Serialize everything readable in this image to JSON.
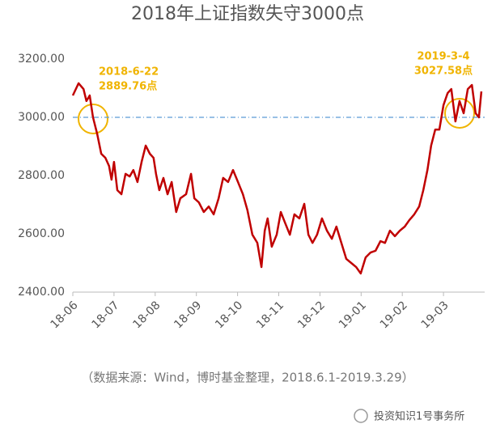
{
  "chart_data": {
    "type": "line",
    "title": "2018年上证指数失守3000点",
    "source": "（数据来源：Wind，博时基金整理，2018.6.1-2019.3.29）",
    "watermark": "投资知识1号事务所",
    "annotations": [
      {
        "date": "2018-6-22",
        "value_label": "2889.76点"
      },
      {
        "date": "2019-3-4",
        "value_label": "3027.58点"
      }
    ],
    "reference_line": 3000,
    "xlim": [
      0,
      10
    ],
    "xticks": [
      {
        "value": 0,
        "label": "18-06"
      },
      {
        "value": 1,
        "label": "18-07"
      },
      {
        "value": 2,
        "label": "18-08"
      },
      {
        "value": 3,
        "label": "18-09"
      },
      {
        "value": 4,
        "label": "18-10"
      },
      {
        "value": 5,
        "label": "18-11"
      },
      {
        "value": 6,
        "label": "18-12"
      },
      {
        "value": 7,
        "label": "19-01"
      },
      {
        "value": 8,
        "label": "19-02"
      },
      {
        "value": 9,
        "label": "19-03"
      }
    ],
    "ylim": [
      2400,
      3200
    ],
    "yticks": [
      {
        "value": 2400,
        "label": "2400.00"
      },
      {
        "value": 2600,
        "label": "2600.00"
      },
      {
        "value": 2800,
        "label": "2800.00"
      },
      {
        "value": 3000,
        "label": "3000.00"
      },
      {
        "value": 3200,
        "label": "3200.00"
      }
    ],
    "series": [
      {
        "color": "#c00000",
        "x": [
          0,
          0.14,
          0.26,
          0.33,
          0.41,
          0.49,
          0.59,
          0.69,
          0.79,
          0.88,
          0.94,
          1.0,
          1.08,
          1.18,
          1.28,
          1.38,
          1.47,
          1.57,
          1.67,
          1.77,
          1.87,
          1.96,
          2.02,
          2.1,
          2.2,
          2.3,
          2.4,
          2.51,
          2.61,
          2.75,
          2.87,
          2.95,
          3.06,
          3.18,
          3.3,
          3.42,
          3.54,
          3.65,
          3.77,
          3.89,
          4.01,
          4.13,
          4.24,
          4.36,
          4.48,
          4.58,
          4.66,
          4.73,
          4.83,
          4.95,
          5.05,
          5.15,
          5.27,
          5.38,
          5.5,
          5.62,
          5.72,
          5.82,
          5.93,
          6.05,
          6.17,
          6.29,
          6.4,
          6.52,
          6.64,
          6.76,
          6.88,
          6.99,
          7.11,
          7.23,
          7.35,
          7.47,
          7.58,
          7.7,
          7.82,
          7.94,
          8.06,
          8.17,
          8.29,
          8.41,
          8.51,
          8.61,
          8.7,
          8.8,
          8.9,
          9.0,
          9.1,
          9.19,
          9.29,
          9.39,
          9.49,
          9.59,
          9.69,
          9.78,
          9.86,
          9.92
        ],
        "values": [
          3075,
          3117,
          3097,
          3056,
          3075,
          3000,
          2944,
          2875,
          2861,
          2833,
          2786,
          2847,
          2750,
          2736,
          2806,
          2797,
          2819,
          2778,
          2847,
          2903,
          2875,
          2861,
          2806,
          2750,
          2792,
          2736,
          2778,
          2675,
          2722,
          2736,
          2806,
          2722,
          2708,
          2675,
          2694,
          2667,
          2722,
          2792,
          2778,
          2819,
          2778,
          2736,
          2681,
          2597,
          2569,
          2486,
          2611,
          2653,
          2556,
          2597,
          2675,
          2639,
          2597,
          2667,
          2653,
          2703,
          2597,
          2569,
          2597,
          2653,
          2611,
          2583,
          2625,
          2569,
          2514,
          2500,
          2486,
          2464,
          2519,
          2536,
          2542,
          2575,
          2569,
          2611,
          2592,
          2611,
          2625,
          2647,
          2667,
          2694,
          2750,
          2819,
          2903,
          2958,
          2958,
          3042,
          3083,
          3097,
          2986,
          3056,
          3014,
          3097,
          3111,
          3014,
          3000,
          3089
        ]
      }
    ]
  }
}
